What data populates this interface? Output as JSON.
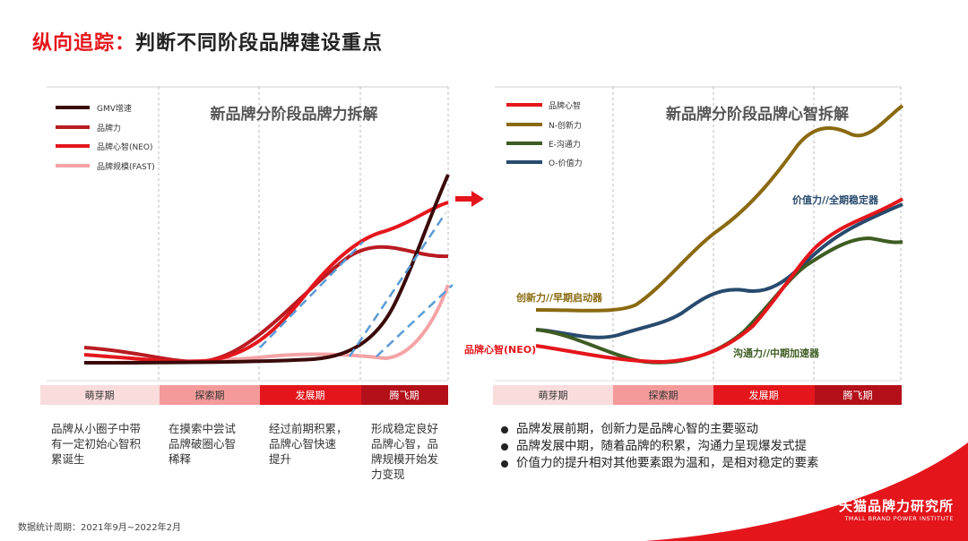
{
  "title": {
    "highlight": "纵向追踪：",
    "main": "判断不同阶段品牌建设重点"
  },
  "left_chart": {
    "title": "新品牌分阶段品牌力拆解",
    "legend": [
      {
        "label": "GMV增速",
        "color": "#3a0a0a"
      },
      {
        "label": "品牌力",
        "color": "#b81c22"
      },
      {
        "label": "品牌心智(NEO)",
        "color": "#e4161c"
      },
      {
        "label": "品牌规模(FAST)",
        "color": "#f4a3a6"
      }
    ],
    "stages": [
      {
        "label": "萌芽期",
        "color": "#fbdcdc",
        "text": "#333"
      },
      {
        "label": "探索期",
        "color": "#f49a9a",
        "text": "#333"
      },
      {
        "label": "发展期",
        "color": "#e4161c",
        "text": "#fff"
      },
      {
        "label": "腾飞期",
        "color": "#b3101a",
        "text": "#fff"
      }
    ]
  },
  "right_chart": {
    "title": "新品牌分阶段品牌心智拆解",
    "legend": [
      {
        "label": "品牌心智",
        "color": "#e4161c"
      },
      {
        "label": "N-创新力",
        "color": "#8a6a10"
      },
      {
        "label": "E-沟通力",
        "color": "#3e5c22"
      },
      {
        "label": "O-价值力",
        "color": "#284a6e"
      }
    ],
    "annotations": [
      {
        "text": "价值力//全期稳定器",
        "color": "#284a6e"
      },
      {
        "text": "创新力//早期启动器",
        "color": "#8a6a10"
      },
      {
        "text": "品牌心智(NEO)",
        "color": "#e4161c"
      },
      {
        "text": "沟通力//中期加速器",
        "color": "#3e5c22"
      }
    ],
    "stages": [
      {
        "label": "萌芽期",
        "color": "#fbdcdc",
        "text": "#333"
      },
      {
        "label": "探索期",
        "color": "#f49a9a",
        "text": "#333"
      },
      {
        "label": "发展期",
        "color": "#e4161c",
        "text": "#fff"
      },
      {
        "label": "腾飞期",
        "color": "#b3101a",
        "text": "#fff"
      }
    ]
  },
  "stage_descriptions": [
    [
      "品牌从小圈子中带",
      "有一定初始心智积",
      "累诞生"
    ],
    [
      "在摸索中尝试",
      "品牌破圈心智",
      "稀释"
    ],
    [
      "经过前期积累，",
      "品牌心智快速",
      "提升"
    ],
    [
      "形成稳定良好",
      "品牌心智，品",
      "牌规模开始发",
      "力变现"
    ]
  ],
  "bullets": [
    "品牌发展前期，创新力是品牌心智的主要驱动",
    "品牌发展中期，随着品牌的积累，沟通力呈现爆发式提",
    "价值力的提升相对其他要素跟为温和，是相对稳定的要素"
  ],
  "footnote": "数据统计周期：2021年9月~2022年2月",
  "brand": {
    "cn": "天猫品牌力研究所",
    "en": "TMALL BRAND POWER INSTITUTE"
  }
}
